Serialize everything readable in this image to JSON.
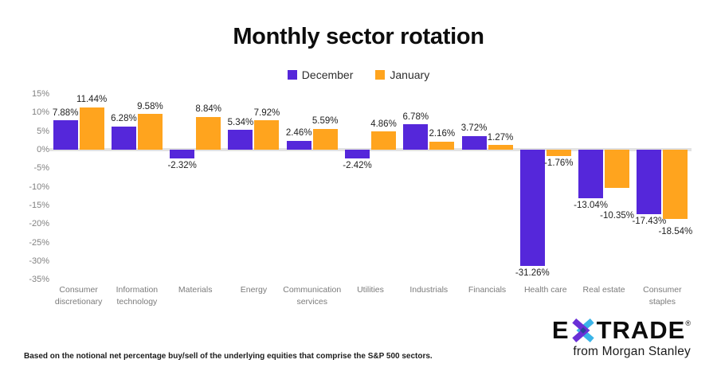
{
  "title": "Monthly sector rotation",
  "footnote": "Based on the notional net percentage buy/sell of the underlying equities that comprise the S&P 500 sectors.",
  "logo": {
    "prefix": "E",
    "suffix": "TRADE",
    "registered": "®",
    "tagline": "from Morgan Stanley",
    "star_purple": "#6a2fd6",
    "star_cyan": "#3ab4e8",
    "star_navy": "#27449c"
  },
  "chart_data": {
    "type": "bar",
    "title": "Monthly sector rotation",
    "categories": [
      "Consumer discretionary",
      "Information technology",
      "Materials",
      "Energy",
      "Communication services",
      "Utilities",
      "Industrials",
      "Financials",
      "Health care",
      "Real estate",
      "Consumer staples"
    ],
    "series": [
      {
        "name": "December",
        "color": "#5527da",
        "values": [
          7.88,
          6.28,
          -2.32,
          5.34,
          2.46,
          -2.42,
          6.78,
          3.72,
          -31.26,
          -13.04,
          -17.43
        ]
      },
      {
        "name": "January",
        "color": "#ffa41e",
        "values": [
          11.44,
          9.58,
          8.84,
          7.92,
          5.59,
          4.86,
          2.16,
          1.27,
          -1.76,
          -10.35,
          -18.54
        ]
      }
    ],
    "value_label_suffix": "%",
    "ylim": [
      -35,
      15
    ],
    "ytick_step": 5,
    "ytick_labels": [
      "15%",
      "10%",
      "5%",
      "0%",
      "-5%",
      "-10%",
      "-15%",
      "-20%",
      "-25%",
      "-30%",
      "-35%"
    ],
    "grid": false,
    "legend_position": "top-center",
    "zero_line_color": "#e2e2e2"
  }
}
